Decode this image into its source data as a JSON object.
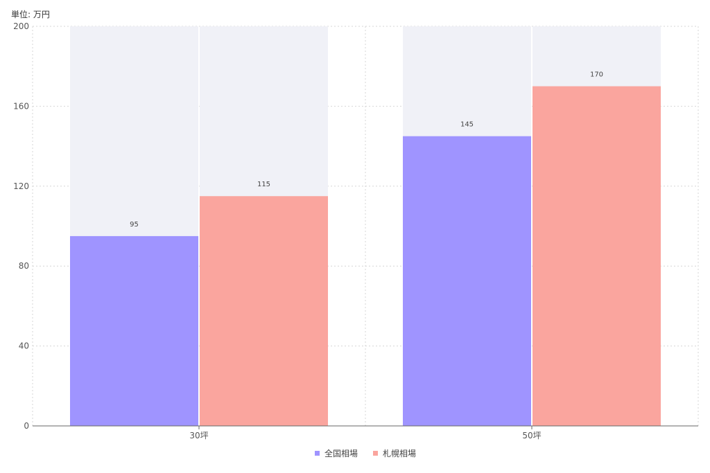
{
  "chart_data": {
    "type": "bar",
    "unit_label": "単位: 万円",
    "categories": [
      "30坪",
      "50坪"
    ],
    "series": [
      {
        "name": "全国相場",
        "values": [
          95,
          145
        ],
        "color": "#9f94ff"
      },
      {
        "name": "札幌相場",
        "values": [
          115,
          170
        ],
        "color": "#faa59e"
      }
    ],
    "ylim": [
      0,
      200
    ],
    "yticks": [
      0,
      40,
      80,
      120,
      160,
      200
    ],
    "grid": true,
    "legend_position": "bottom-center",
    "category_background_color": "#f0f1f7"
  }
}
